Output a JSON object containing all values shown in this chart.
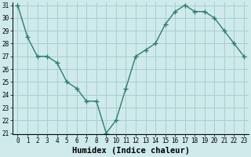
{
  "x": [
    0,
    1,
    2,
    3,
    4,
    5,
    6,
    7,
    8,
    9,
    10,
    11,
    12,
    13,
    14,
    15,
    16,
    17,
    18,
    19,
    20,
    21,
    22,
    23
  ],
  "y": [
    31,
    28.5,
    27,
    27,
    26.5,
    25,
    24.5,
    23.5,
    23.5,
    21,
    22,
    24.5,
    27,
    27.5,
    28,
    29.5,
    30.5,
    31,
    30.5,
    30.5,
    30,
    29,
    28,
    27
  ],
  "line_color": "#2e7d6e",
  "marker": "+",
  "marker_size": 4,
  "marker_linewidth": 1.0,
  "bg_color": "#ceeaea",
  "grid_color": "#aacece",
  "xlabel": "Humidex (Indice chaleur)",
  "ylim": [
    21,
    31
  ],
  "xlim": [
    -0.5,
    23.5
  ],
  "yticks": [
    21,
    22,
    23,
    24,
    25,
    26,
    27,
    28,
    29,
    30,
    31
  ],
  "xticks": [
    0,
    1,
    2,
    3,
    4,
    5,
    6,
    7,
    8,
    9,
    10,
    11,
    12,
    13,
    14,
    15,
    16,
    17,
    18,
    19,
    20,
    21,
    22,
    23
  ],
  "tick_fontsize": 5.5,
  "xlabel_fontsize": 7.5,
  "line_width": 1.0
}
